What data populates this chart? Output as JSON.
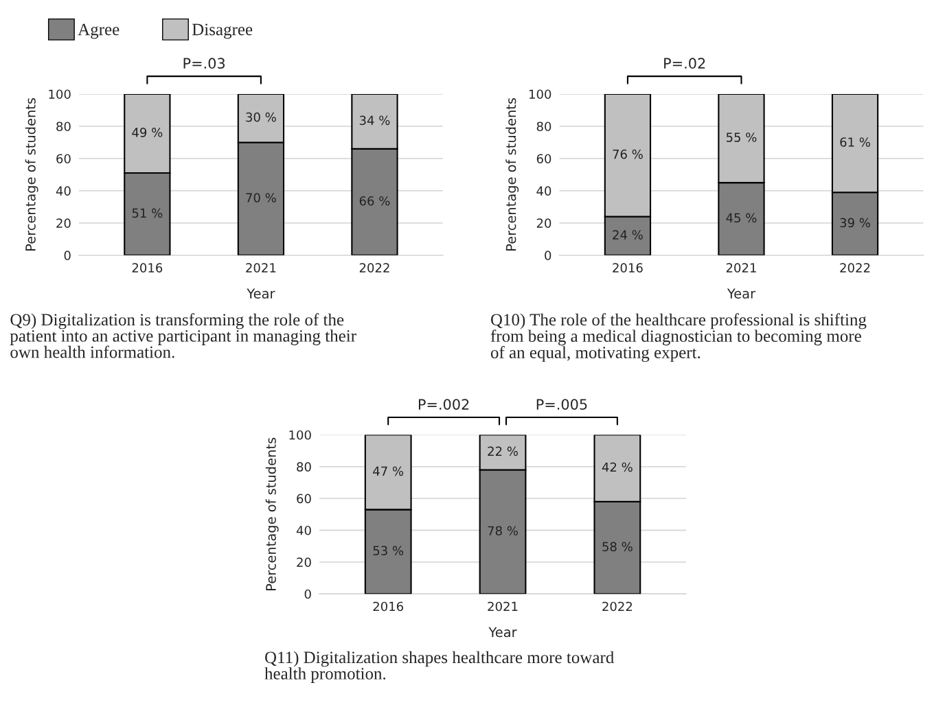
{
  "chart_data": [
    {
      "type": "bar",
      "stacked": true,
      "title": "Q9) Digitalization is transforming the role of the\npatient into an active participant in managing their\nown health information.",
      "xlabel": "Year",
      "ylabel": "Percentage of students",
      "categories": [
        "2016",
        "2021",
        "2022"
      ],
      "series": [
        {
          "name": "Agree",
          "color": "#808080",
          "values": [
            51,
            70,
            66
          ],
          "value_labels": [
            "51 %",
            "70 %",
            "66 %"
          ]
        },
        {
          "name": "Disagree",
          "color": "#c0c0c0",
          "values": [
            49,
            30,
            34
          ],
          "value_labels": [
            "49 %",
            "30 %",
            "34 %"
          ]
        }
      ],
      "ylim": [
        0,
        100
      ],
      "yticks": [
        0,
        20,
        40,
        60,
        80,
        100
      ],
      "grid": "y",
      "legend": "top left",
      "annotations": [
        "P=.03"
      ]
    },
    {
      "type": "bar",
      "stacked": true,
      "title": "Q10) The role of the healthcare professional is shifting\nfrom being a medical diagnostician to becoming more\nof an equal, motivating expert.",
      "xlabel": "Year",
      "ylabel": "Percentage of students",
      "categories": [
        "2016",
        "2021",
        "2022"
      ],
      "series": [
        {
          "color": "#808080",
          "values": [
            24,
            45,
            39
          ],
          "value_labels": [
            "24 %",
            "45 %",
            "39 %"
          ]
        },
        {
          "color": "#c0c0c0",
          "values": [
            76,
            55,
            61
          ],
          "value_labels": [
            "76 %",
            "55 %",
            "61 %"
          ]
        }
      ],
      "ylim": [
        0,
        100
      ],
      "yticks": [
        0,
        20,
        40,
        60,
        80,
        100
      ],
      "grid": "y",
      "annotations": [
        "P=.02"
      ]
    },
    {
      "type": "bar",
      "stacked": true,
      "title": "Q11) Digitalization shapes healthcare more toward\nhealth promotion.",
      "xlabel": "Year",
      "ylabel": "Percentage of students",
      "categories": [
        "2016",
        "2021",
        "2022"
      ],
      "series": [
        {
          "color": "#808080",
          "values": [
            53,
            78,
            58
          ],
          "value_labels": [
            "53 %",
            "78 %",
            "58 %"
          ]
        },
        {
          "color": "#c0c0c0",
          "values": [
            47,
            22,
            42
          ],
          "value_labels": [
            "47 %",
            "22 %",
            "42 %"
          ]
        }
      ],
      "ylim": [
        0,
        100
      ],
      "yticks": [
        0,
        20,
        40,
        60,
        80,
        100
      ],
      "grid": "y",
      "annotations": [
        "P=.002",
        "P=.005"
      ]
    }
  ]
}
